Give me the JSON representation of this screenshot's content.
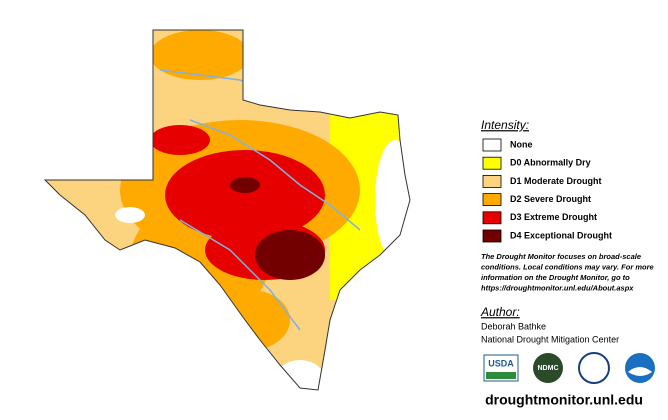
{
  "legend": {
    "title": "Intensity:",
    "items": [
      {
        "label": "None",
        "color": "#ffffff"
      },
      {
        "label": "D0 Abnormally Dry",
        "color": "#ffff00"
      },
      {
        "label": "D1 Moderate Drought",
        "color": "#fcd37f"
      },
      {
        "label": "D2 Severe Drought",
        "color": "#ffaa00"
      },
      {
        "label": "D3 Extreme Drought",
        "color": "#e60000"
      },
      {
        "label": "D4 Exceptional Drought",
        "color": "#730000"
      }
    ]
  },
  "note": [
    "The Drought Monitor focuses on broad-scale",
    "conditions. Local conditions may vary. For more",
    "information on the Drought Monitor, go to",
    "https://droughtmonitor.unl.edu/About.aspx"
  ],
  "author": {
    "heading": "Author:",
    "names": [
      "Deborah Bathke",
      "National Drought Mitigation Center"
    ]
  },
  "logos": [
    "USDA",
    "NDMC"
  ],
  "url": "droughtmonitor.unl.edu"
}
